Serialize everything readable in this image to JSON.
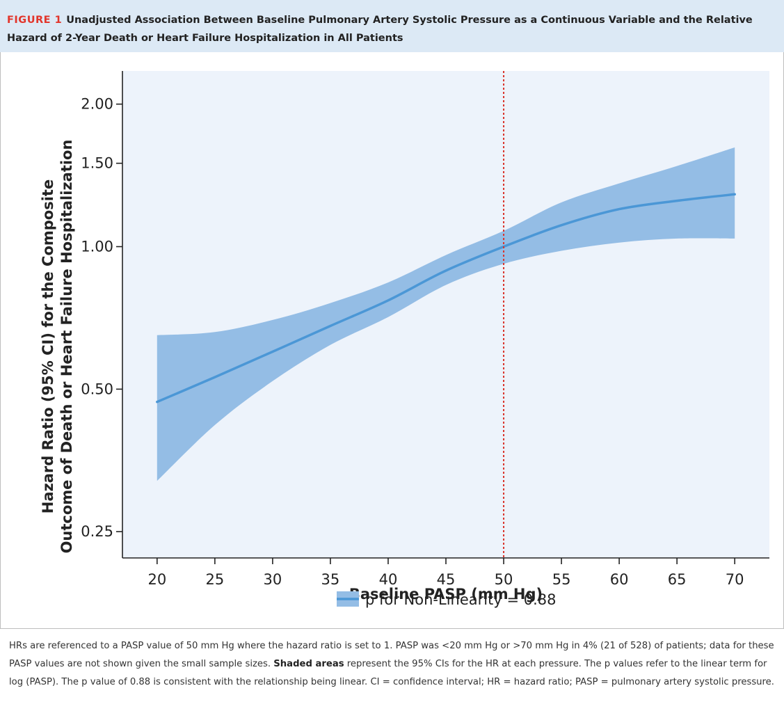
{
  "header": {
    "figure_label": "FIGURE 1",
    "title": "Unadjusted Association Between Baseline Pulmonary Artery Systolic Pressure as a Continuous Variable and the Relative Hazard of 2-Year Death or Heart Failure Hospitalization in All Patients"
  },
  "chart_data": {
    "type": "line",
    "xlabel": "Baseline PASP (mm Hg)",
    "ylabel_line1": "Hazard Ratio (95% CI) for the Composite",
    "ylabel_line2": "Outcome of Death or Heart Failure Hospitalization",
    "xlim": [
      17,
      73
    ],
    "ylim": [
      0.22,
      2.35
    ],
    "y_scale": "log",
    "x_ticks": [
      20,
      25,
      30,
      35,
      40,
      45,
      50,
      55,
      60,
      65,
      70
    ],
    "x_tick_labels": [
      "20",
      "25",
      "30",
      "35",
      "40",
      "45",
      "50",
      "55",
      "60",
      "65",
      "70"
    ],
    "y_ticks": [
      0.25,
      0.5,
      1.0,
      1.5,
      2.0
    ],
    "y_tick_labels": [
      "0.25",
      "0.50",
      "1.00",
      "1.50",
      "2.00"
    ],
    "reference_line": {
      "x": 50
    },
    "legend": {
      "label": "p for Non-Linearity = 0.88",
      "position": "bottom-center"
    },
    "series": [
      {
        "name": "p for Non-Linearity = 0.88",
        "x": [
          20,
          25,
          30,
          35,
          40,
          45,
          50,
          55,
          60,
          65,
          70
        ],
        "hr": [
          0.47,
          0.53,
          0.6,
          0.68,
          0.77,
          0.89,
          1.0,
          1.11,
          1.2,
          1.25,
          1.29
        ],
        "lower": [
          0.32,
          0.42,
          0.52,
          0.62,
          0.71,
          0.83,
          0.92,
          0.98,
          1.02,
          1.04,
          1.04
        ],
        "upper": [
          0.65,
          0.66,
          0.7,
          0.76,
          0.84,
          0.96,
          1.08,
          1.24,
          1.36,
          1.48,
          1.62
        ]
      }
    ],
    "colors": {
      "band": "#94bde5",
      "line": "#4b97d6",
      "plot_bg": "#edf3fb",
      "reference": "#d9342b"
    },
    "grid": false
  },
  "caption": {
    "text1": "HRs are referenced to a PASP value of 50 mm Hg where the hazard ratio is set to 1. PASP was <20 mm Hg or >70 mm Hg in 4% (21 of 528) of patients; data for these PASP values are not shown given the small sample sizes. ",
    "bold": "Shaded areas",
    "text2": " represent the 95% CIs for the HR at each pressure. The p values refer to the linear term for log (PASP). The p value of 0.88 is consistent with the relationship being linear. CI = confidence interval; HR = hazard ratio; PASP = pulmonary artery systolic pressure."
  }
}
